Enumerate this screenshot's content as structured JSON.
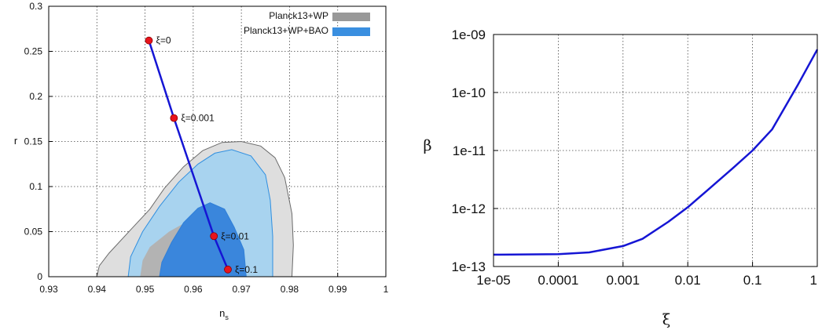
{
  "chart_data": [
    {
      "type": "scatter",
      "xlabel_main": "n",
      "xlabel_sub": "s",
      "ylabel": "r",
      "xlim": [
        0.93,
        1.0
      ],
      "ylim": [
        0,
        0.3
      ],
      "xticks": [
        "0.93",
        "0.94",
        "0.95",
        "0.96",
        "0.97",
        "0.98",
        "0.99",
        "1"
      ],
      "yticks": [
        "0",
        "0.05",
        "0.1",
        "0.15",
        "0.2",
        "0.25",
        "0.3"
      ],
      "grid": true,
      "legend_position": "top-right",
      "legend": [
        {
          "label": "Planck13+WP",
          "color": "#999999"
        },
        {
          "label": "Planck13+WP+BAO",
          "color": "#3a8fe0"
        }
      ],
      "contours": [
        {
          "series": "Planck13+WP",
          "level": "95%",
          "fill": "#dedede",
          "stroke": "#6b6b6b",
          "points": [
            [
              0.94,
              0
            ],
            [
              0.9405,
              0.012
            ],
            [
              0.9425,
              0.026
            ],
            [
              0.947,
              0.052
            ],
            [
              0.951,
              0.075
            ],
            [
              0.954,
              0.098
            ],
            [
              0.958,
              0.122
            ],
            [
              0.962,
              0.14
            ],
            [
              0.966,
              0.149
            ],
            [
              0.97,
              0.15
            ],
            [
              0.974,
              0.145
            ],
            [
              0.977,
              0.132
            ],
            [
              0.979,
              0.11
            ],
            [
              0.9805,
              0.07
            ],
            [
              0.9808,
              0.035
            ],
            [
              0.9805,
              0
            ]
          ]
        },
        {
          "series": "Planck13+WP+BAO",
          "level": "95%",
          "fill": "#a8d3ef",
          "stroke": "#2f8fe0",
          "points": [
            [
              0.9465,
              0
            ],
            [
              0.947,
              0.022
            ],
            [
              0.9495,
              0.05
            ],
            [
              0.953,
              0.078
            ],
            [
              0.957,
              0.105
            ],
            [
              0.961,
              0.125
            ],
            [
              0.9645,
              0.137
            ],
            [
              0.968,
              0.141
            ],
            [
              0.972,
              0.134
            ],
            [
              0.975,
              0.113
            ],
            [
              0.976,
              0.085
            ],
            [
              0.9765,
              0.045
            ],
            [
              0.9765,
              0
            ]
          ]
        },
        {
          "series": "Planck13+WP",
          "level": "68%",
          "fill": "#b3b3b3",
          "stroke": "none",
          "points": [
            [
              0.949,
              0
            ],
            [
              0.9495,
              0.018
            ],
            [
              0.951,
              0.033
            ],
            [
              0.955,
              0.05
            ],
            [
              0.959,
              0.062
            ],
            [
              0.963,
              0.066
            ],
            [
              0.966,
              0.058
            ],
            [
              0.968,
              0.04
            ],
            [
              0.9695,
              0.018
            ],
            [
              0.9695,
              0
            ]
          ]
        },
        {
          "series": "Planck13+WP+BAO",
          "level": "68%",
          "fill": "#3a86dc",
          "stroke": "#2f7fd8",
          "points": [
            [
              0.953,
              0
            ],
            [
              0.9535,
              0.016
            ],
            [
              0.9555,
              0.038
            ],
            [
              0.958,
              0.06
            ],
            [
              0.961,
              0.076
            ],
            [
              0.9635,
              0.082
            ],
            [
              0.9665,
              0.075
            ],
            [
              0.9685,
              0.055
            ],
            [
              0.9705,
              0.03
            ],
            [
              0.971,
              0
            ]
          ]
        }
      ],
      "line": {
        "color": "#1515d4",
        "points": [
          {
            "x": 0.9508,
            "y": 0.262,
            "label": "ξ=0"
          },
          {
            "x": 0.956,
            "y": 0.176,
            "label": "ξ=0.001"
          },
          {
            "x": 0.9643,
            "y": 0.045,
            "label": "ξ=0.01"
          },
          {
            "x": 0.9672,
            "y": 0.008,
            "label": "ξ=0.1"
          }
        ]
      }
    },
    {
      "type": "line",
      "xlabel": "ξ",
      "ylabel": "β",
      "xscale": "log",
      "yscale": "log",
      "xlim": [
        1e-05,
        1
      ],
      "ylim": [
        1e-13,
        1e-09
      ],
      "xticks": [
        "1e-05",
        "0.0001",
        "0.001",
        "0.01",
        "0.1",
        "1"
      ],
      "yticks": [
        "1e-13",
        "1e-12",
        "1e-11",
        "1e-10",
        "1e-09"
      ],
      "grid": true,
      "series": [
        {
          "color": "#1515d4",
          "x": [
            1e-05,
            0.0001,
            0.0003,
            0.001,
            0.002,
            0.005,
            0.01,
            0.02,
            0.05,
            0.1,
            0.2,
            0.5,
            1
          ],
          "y": [
            1.6e-13,
            1.63e-13,
            1.75e-13,
            2.25e-13,
            3e-13,
            5.9e-13,
            1.05e-12,
            2.05e-12,
            5e-12,
            1e-11,
            2.3e-11,
            1.35e-10,
            5.5e-10
          ]
        }
      ]
    }
  ]
}
